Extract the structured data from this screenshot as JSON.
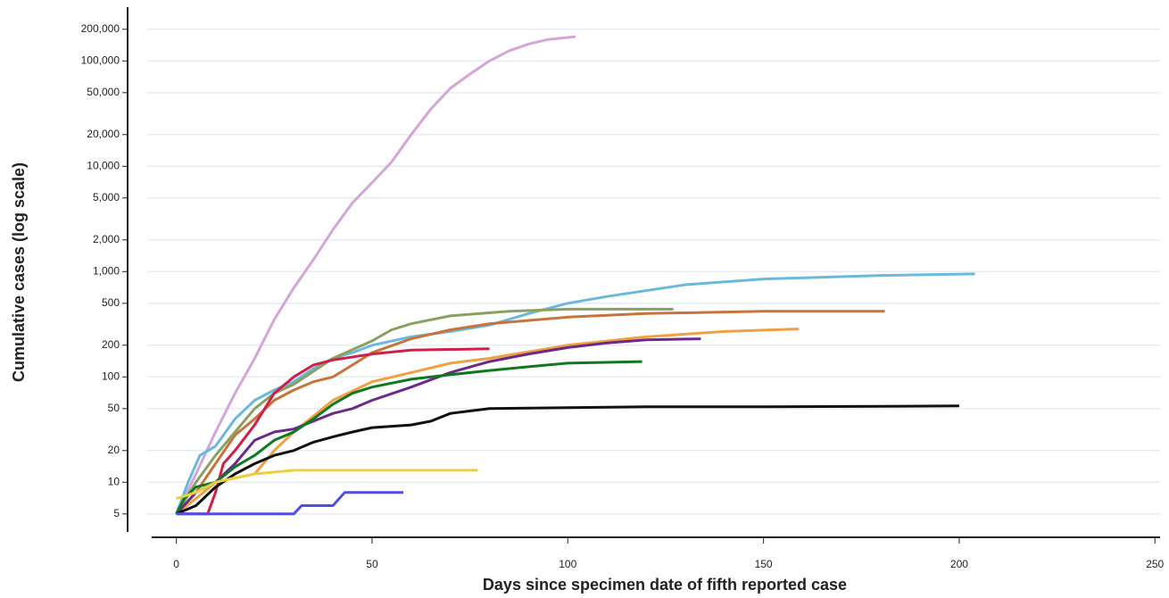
{
  "chart_data": {
    "type": "line",
    "xlabel": "Days since specimen date of fifth reported case",
    "ylabel": "Cumulative cases (log scale)",
    "yscale": "log",
    "grid": true,
    "xlim": [
      -12,
      252
    ],
    "ylim": [
      3,
      300000
    ],
    "xticks": [
      0,
      50,
      100,
      150,
      200,
      250
    ],
    "yticks": [
      5,
      10,
      20,
      50,
      100,
      200,
      500,
      {
        "value": 1000,
        "label": "1,000"
      },
      {
        "value": 2000,
        "label": "2,000"
      },
      {
        "value": 5000,
        "label": "5,000"
      },
      {
        "value": 10000,
        "label": "10,000"
      },
      {
        "value": 20000,
        "label": "20,000"
      },
      {
        "value": 50000,
        "label": "50,000"
      },
      {
        "value": 100000,
        "label": "100,000"
      },
      {
        "value": 200000,
        "label": "200,000"
      }
    ],
    "series": [
      {
        "color": "#d4a6d8",
        "x": [
          0,
          5,
          10,
          15,
          20,
          25,
          30,
          35,
          40,
          45,
          50,
          55,
          60,
          65,
          70,
          75,
          80,
          85,
          90,
          95,
          102
        ],
        "values": [
          5,
          12,
          30,
          70,
          150,
          350,
          700,
          1300,
          2500,
          4500,
          7000,
          11000,
          20000,
          35000,
          55000,
          75000,
          100000,
          125000,
          145000,
          160000,
          170000
        ]
      },
      {
        "color": "#6bb8dc",
        "x": [
          0,
          3,
          6,
          10,
          15,
          20,
          25,
          30,
          35,
          40,
          45,
          50,
          60,
          70,
          80,
          90,
          100,
          110,
          130,
          150,
          180,
          204
        ],
        "values": [
          5,
          10,
          18,
          22,
          40,
          60,
          75,
          90,
          120,
          150,
          170,
          200,
          240,
          270,
          310,
          400,
          500,
          580,
          750,
          850,
          920,
          950
        ]
      },
      {
        "color": "#c8733c",
        "x": [
          0,
          5,
          10,
          15,
          20,
          25,
          30,
          35,
          40,
          45,
          50,
          60,
          70,
          80,
          100,
          120,
          150,
          181
        ],
        "values": [
          5,
          8,
          15,
          28,
          40,
          60,
          75,
          90,
          100,
          130,
          170,
          230,
          280,
          320,
          370,
          400,
          420,
          420
        ]
      },
      {
        "color": "#8aa060",
        "x": [
          0,
          5,
          10,
          15,
          20,
          25,
          30,
          40,
          50,
          55,
          60,
          70,
          85,
          100,
          127
        ],
        "values": [
          5,
          10,
          18,
          30,
          50,
          70,
          85,
          150,
          220,
          280,
          320,
          380,
          420,
          440,
          440
        ]
      },
      {
        "color": "#f0a040",
        "x": [
          0,
          5,
          10,
          20,
          25,
          30,
          40,
          50,
          60,
          70,
          80,
          100,
          120,
          140,
          159
        ],
        "values": [
          5,
          7,
          10,
          12,
          20,
          30,
          60,
          90,
          110,
          135,
          150,
          200,
          240,
          270,
          285
        ]
      },
      {
        "color": "#6a2a8a",
        "x": [
          0,
          5,
          10,
          15,
          20,
          25,
          30,
          35,
          40,
          45,
          50,
          60,
          70,
          80,
          90,
          100,
          110,
          120,
          134
        ],
        "values": [
          5,
          8,
          10,
          15,
          25,
          30,
          32,
          38,
          45,
          50,
          60,
          80,
          110,
          140,
          165,
          190,
          210,
          225,
          230
        ]
      },
      {
        "color": "#d0204a",
        "x": [
          0,
          8,
          10,
          12,
          15,
          20,
          25,
          30,
          35,
          40,
          50,
          60,
          80
        ],
        "values": [
          5,
          5,
          8,
          15,
          20,
          35,
          70,
          100,
          130,
          145,
          165,
          180,
          185
        ]
      },
      {
        "color": "#107820",
        "x": [
          0,
          2,
          5,
          10,
          15,
          20,
          25,
          30,
          35,
          40,
          45,
          50,
          60,
          70,
          80,
          90,
          100,
          119
        ],
        "values": [
          5,
          7,
          9,
          10,
          14,
          18,
          25,
          30,
          40,
          55,
          70,
          80,
          95,
          105,
          115,
          125,
          135,
          140
        ]
      },
      {
        "color": "#111111",
        "x": [
          0,
          5,
          10,
          15,
          20,
          25,
          30,
          35,
          40,
          45,
          50,
          60,
          65,
          70,
          80,
          100,
          120,
          150,
          200
        ],
        "values": [
          5,
          6,
          9,
          12,
          15,
          18,
          20,
          24,
          27,
          30,
          33,
          35,
          38,
          45,
          50,
          51,
          52,
          52,
          53
        ]
      },
      {
        "color": "#e8d040",
        "x": [
          0,
          5,
          10,
          15,
          20,
          30,
          40,
          77
        ],
        "values": [
          7,
          8,
          10,
          11,
          12,
          13,
          13,
          13
        ]
      },
      {
        "color": "#5050e0",
        "x": [
          0,
          30,
          32,
          40,
          43,
          58
        ],
        "values": [
          5,
          5,
          6,
          6,
          8,
          8
        ]
      }
    ]
  }
}
